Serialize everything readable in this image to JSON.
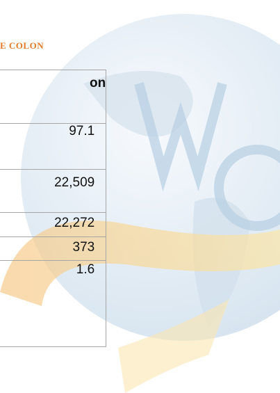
{
  "heading": "E COLON",
  "table": {
    "header": "on",
    "rows": [
      "97.1",
      "22,509",
      "22,272",
      "373",
      "1.6"
    ]
  }
}
